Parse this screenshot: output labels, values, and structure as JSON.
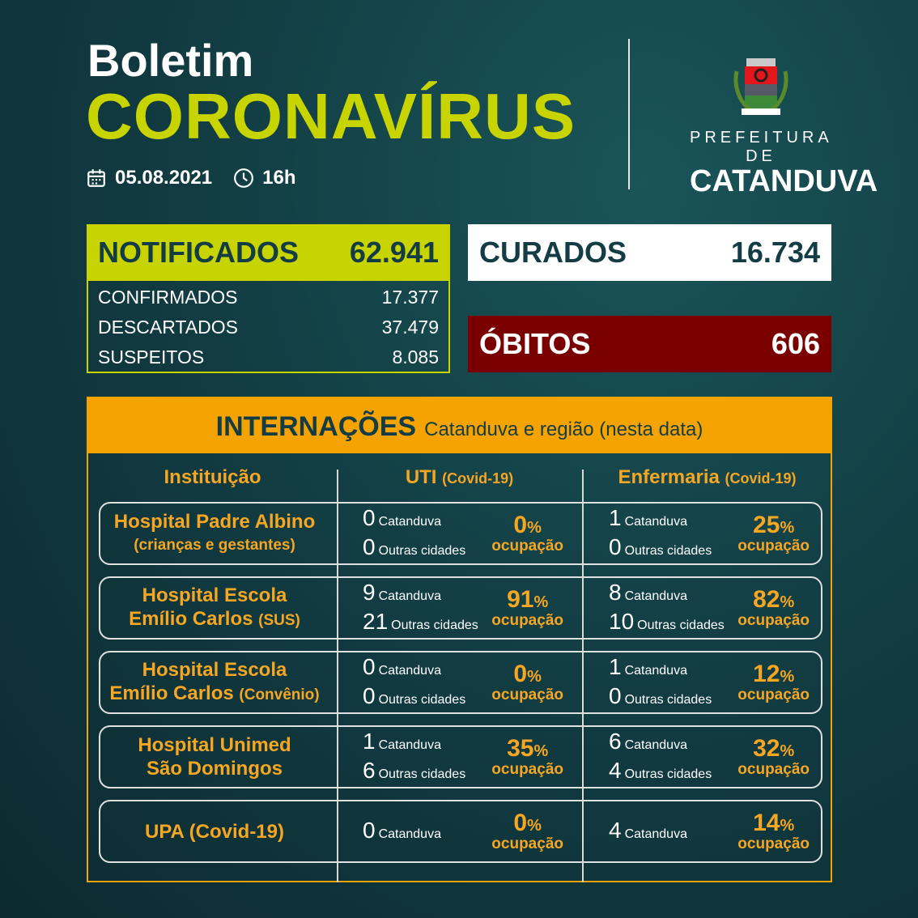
{
  "header": {
    "line1": "Boletim",
    "line2": "CORONAVÍRUS",
    "date": "05.08.2021",
    "time": "16h",
    "calendar_icon": "calendar-icon",
    "clock_icon": "clock-icon"
  },
  "logo": {
    "line1": "PREFEITURA DE",
    "line2": "CATANDUVA",
    "crest_text": "CATANDUVA"
  },
  "notificados": {
    "label": "NOTIFICADOS",
    "value": "62.941",
    "rows": [
      {
        "label": "CONFIRMADOS",
        "value": "17.377"
      },
      {
        "label": "DESCARTADOS",
        "value": "37.479"
      },
      {
        "label": "SUSPEITOS",
        "value": "8.085"
      }
    ]
  },
  "curados": {
    "label": "CURADOS",
    "value": "16.734"
  },
  "obitos": {
    "label": "ÓBITOS",
    "value": "606"
  },
  "colors": {
    "lime": "#c8d400",
    "orange": "#f5a300",
    "deaths": "#7a0000",
    "background": "#123e44"
  },
  "internacoes": {
    "title": "INTERNAÇÕES",
    "subtitle": "Catanduva e região (nesta data)",
    "columns": [
      {
        "label": "Instituição",
        "sub": ""
      },
      {
        "label": "UTI",
        "sub": "(Covid-19)"
      },
      {
        "label": "Enfermaria",
        "sub": "(Covid-19)"
      }
    ],
    "occupation_label": "ocupação",
    "local_label": "Catanduva",
    "other_label": "Outras cidades",
    "rows": [
      {
        "name1": "Hospital Padre Albino",
        "name2": "(crianças e gestantes)",
        "name2_extra": "",
        "uti": {
          "cat": "0",
          "out": "0",
          "pct": "0"
        },
        "enf": {
          "cat": "1",
          "out": "0",
          "pct": "25"
        }
      },
      {
        "name1": "Hospital Escola",
        "name2": "Emílio Carlos",
        "name2_extra": "(SUS)",
        "uti": {
          "cat": "9",
          "out": "21",
          "pct": "91"
        },
        "enf": {
          "cat": "8",
          "out": "10",
          "pct": "82"
        }
      },
      {
        "name1": "Hospital Escola",
        "name2": "Emílio Carlos",
        "name2_extra": "(Convênio)",
        "uti": {
          "cat": "0",
          "out": "0",
          "pct": "0"
        },
        "enf": {
          "cat": "1",
          "out": "0",
          "pct": "12"
        }
      },
      {
        "name1": "Hospital Unimed",
        "name2": "São Domingos",
        "name2_extra": "",
        "uti": {
          "cat": "1",
          "out": "6",
          "pct": "35"
        },
        "enf": {
          "cat": "6",
          "out": "4",
          "pct": "32"
        }
      },
      {
        "name1": "UPA (Covid-19)",
        "name2": "",
        "name2_extra": "",
        "uti": {
          "cat": "0",
          "pct": "0"
        },
        "enf": {
          "cat": "4",
          "pct": "14"
        }
      }
    ]
  }
}
